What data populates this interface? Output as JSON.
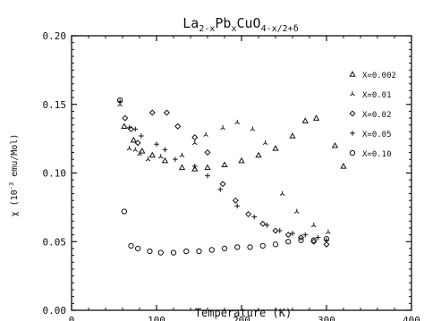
{
  "chart_data": {
    "type": "scatter",
    "title": {
      "base": "La",
      "s1": "2-x",
      "mid": "Pb",
      "s2": "x",
      "tail": "CuO",
      "s3": "4-x/2+δ"
    },
    "xlabel": "Temperature (K)",
    "ylabel": {
      "pre": "χ (10",
      "exp": "-3",
      "post": " emu/Mol)"
    },
    "xlim": [
      0,
      400
    ],
    "ylim": [
      0,
      0.2
    ],
    "xticks": [
      0,
      100,
      200,
      300,
      400
    ],
    "xtick_labels": [
      "0",
      "100",
      "200",
      "300",
      "400"
    ],
    "yticks": [
      0,
      0.05,
      0.1,
      0.15,
      0.2
    ],
    "ytick_labels": [
      "0.00",
      "0.05",
      "0.10",
      "0.15",
      "0.20"
    ],
    "grid": false,
    "legend_position": "right",
    "series": [
      {
        "name": "X=0.002",
        "marker": "triangle",
        "points": [
          [
            62,
            0.134
          ],
          [
            73,
            0.124
          ],
          [
            83,
            0.116
          ],
          [
            95,
            0.113
          ],
          [
            110,
            0.109
          ],
          [
            130,
            0.104
          ],
          [
            145,
            0.103
          ],
          [
            160,
            0.104
          ],
          [
            180,
            0.106
          ],
          [
            200,
            0.109
          ],
          [
            220,
            0.113
          ],
          [
            240,
            0.118
          ],
          [
            260,
            0.127
          ],
          [
            275,
            0.138
          ],
          [
            288,
            0.14
          ],
          [
            310,
            0.12
          ],
          [
            320,
            0.105
          ]
        ]
      },
      {
        "name": "X=0.01",
        "marker": "tristar",
        "points": [
          [
            57,
            0.15
          ],
          [
            68,
            0.118
          ],
          [
            75,
            0.117
          ],
          [
            80,
            0.114
          ],
          [
            90,
            0.11
          ],
          [
            105,
            0.112
          ],
          [
            130,
            0.113
          ],
          [
            145,
            0.122
          ],
          [
            158,
            0.128
          ],
          [
            178,
            0.133
          ],
          [
            195,
            0.137
          ],
          [
            213,
            0.132
          ],
          [
            228,
            0.122
          ],
          [
            248,
            0.085
          ],
          [
            265,
            0.072
          ],
          [
            285,
            0.062
          ],
          [
            302,
            0.057
          ]
        ]
      },
      {
        "name": "X=0.02",
        "marker": "diamond",
        "points": [
          [
            63,
            0.14
          ],
          [
            70,
            0.132
          ],
          [
            78,
            0.122
          ],
          [
            95,
            0.144
          ],
          [
            112,
            0.144
          ],
          [
            125,
            0.134
          ],
          [
            145,
            0.126
          ],
          [
            160,
            0.115
          ],
          [
            178,
            0.092
          ],
          [
            193,
            0.08
          ],
          [
            208,
            0.07
          ],
          [
            225,
            0.063
          ],
          [
            240,
            0.058
          ],
          [
            255,
            0.055
          ],
          [
            270,
            0.053
          ],
          [
            285,
            0.05
          ],
          [
            300,
            0.048
          ]
        ]
      },
      {
        "name": "X=0.05",
        "marker": "plus",
        "points": [
          [
            57,
            0.152
          ],
          [
            68,
            0.133
          ],
          [
            75,
            0.132
          ],
          [
            82,
            0.127
          ],
          [
            100,
            0.121
          ],
          [
            110,
            0.117
          ],
          [
            122,
            0.11
          ],
          [
            145,
            0.105
          ],
          [
            160,
            0.098
          ],
          [
            175,
            0.088
          ],
          [
            195,
            0.076
          ],
          [
            215,
            0.068
          ],
          [
            230,
            0.062
          ],
          [
            245,
            0.058
          ],
          [
            260,
            0.056
          ],
          [
            275,
            0.055
          ],
          [
            290,
            0.053
          ],
          [
            300,
            0.051
          ]
        ]
      },
      {
        "name": "X=0.10",
        "marker": "circle",
        "points": [
          [
            57,
            0.153
          ],
          [
            62,
            0.072
          ],
          [
            70,
            0.047
          ],
          [
            78,
            0.045
          ],
          [
            92,
            0.043
          ],
          [
            105,
            0.042
          ],
          [
            120,
            0.042
          ],
          [
            135,
            0.043
          ],
          [
            150,
            0.043
          ],
          [
            165,
            0.044
          ],
          [
            180,
            0.045
          ],
          [
            195,
            0.046
          ],
          [
            210,
            0.046
          ],
          [
            225,
            0.047
          ],
          [
            240,
            0.048
          ],
          [
            255,
            0.05
          ],
          [
            270,
            0.051
          ],
          [
            285,
            0.051
          ],
          [
            300,
            0.052
          ]
        ]
      }
    ]
  }
}
